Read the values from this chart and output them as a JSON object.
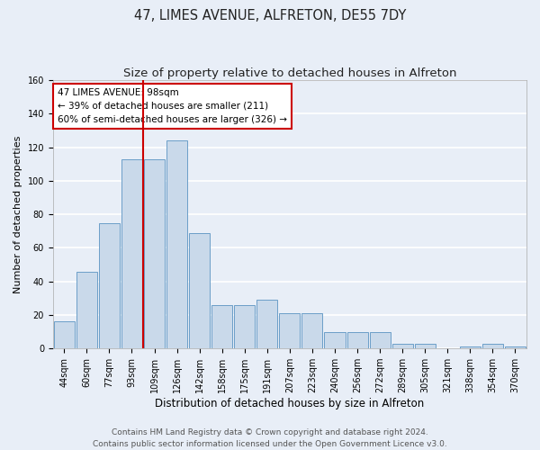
{
  "title": "47, LIMES AVENUE, ALFRETON, DE55 7DY",
  "subtitle": "Size of property relative to detached houses in Alfreton",
  "xlabel": "Distribution of detached houses by size in Alfreton",
  "ylabel": "Number of detached properties",
  "bar_labels": [
    "44sqm",
    "60sqm",
    "77sqm",
    "93sqm",
    "109sqm",
    "126sqm",
    "142sqm",
    "158sqm",
    "175sqm",
    "191sqm",
    "207sqm",
    "223sqm",
    "240sqm",
    "256sqm",
    "272sqm",
    "289sqm",
    "305sqm",
    "321sqm",
    "338sqm",
    "354sqm",
    "370sqm"
  ],
  "bar_values": [
    16,
    46,
    75,
    113,
    113,
    124,
    69,
    26,
    26,
    29,
    21,
    21,
    10,
    10,
    10,
    3,
    3,
    0,
    1,
    3,
    1
  ],
  "bar_color": "#c9d9ea",
  "bar_edge_color": "#6b9ec8",
  "vline_color": "#cc0000",
  "annotation_text": "47 LIMES AVENUE: 98sqm\n← 39% of detached houses are smaller (211)\n60% of semi-detached houses are larger (326) →",
  "annotation_box_color": "white",
  "annotation_box_edge_color": "#cc0000",
  "ylim": [
    0,
    160
  ],
  "yticks": [
    0,
    20,
    40,
    60,
    80,
    100,
    120,
    140,
    160
  ],
  "footer_text": "Contains HM Land Registry data © Crown copyright and database right 2024.\nContains public sector information licensed under the Open Government Licence v3.0.",
  "bg_color": "#e8eef7",
  "grid_color": "white",
  "title_fontsize": 10.5,
  "subtitle_fontsize": 9.5,
  "xlabel_fontsize": 8.5,
  "ylabel_fontsize": 8,
  "tick_fontsize": 7,
  "annotation_fontsize": 7.5,
  "footer_fontsize": 6.5
}
